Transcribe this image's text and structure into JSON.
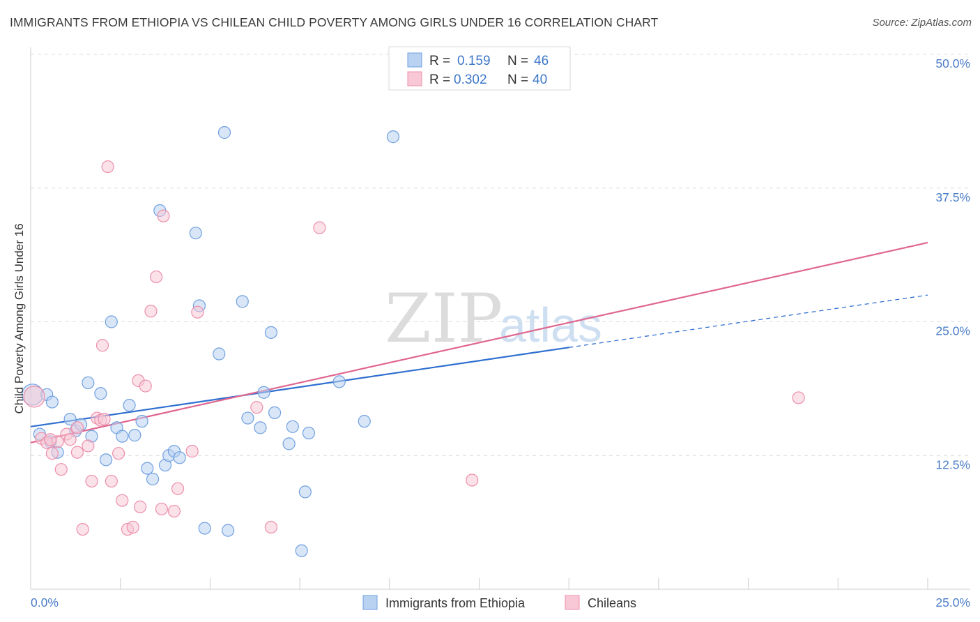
{
  "title": "IMMIGRANTS FROM ETHIOPIA VS CHILEAN CHILD POVERTY AMONG GIRLS UNDER 16 CORRELATION CHART",
  "source": "Source: ZipAtlas.com",
  "watermark": {
    "zip": "ZIP",
    "atlas": "atlas"
  },
  "legend": {
    "rows": [
      {
        "r_label": "R =",
        "r_value": "0.159",
        "n_label": "N =",
        "n_value": "46",
        "color": "#a9c6ee"
      },
      {
        "r_label": "R =",
        "r_value": "0.302",
        "n_label": "N =",
        "n_value": "40",
        "color": "#f5b7c8"
      }
    ]
  },
  "chart_data": {
    "type": "scatter",
    "title": "IMMIGRANTS FROM ETHIOPIA VS CHILEAN CHILD POVERTY AMONG GIRLS UNDER 16 CORRELATION CHART",
    "xlabel": "",
    "ylabel": "Child Poverty Among Girls Under 16",
    "xlim": [
      0,
      25
    ],
    "ylim": [
      0,
      52
    ],
    "x_tick_labels": [
      "0.0%",
      "25.0%"
    ],
    "y_ticks": [
      12.5,
      25.0,
      37.5,
      50.0
    ],
    "y_tick_labels": [
      "12.5%",
      "25.0%",
      "37.5%",
      "50.0%"
    ],
    "grid": "horizontal dashed",
    "legend_position": "top-center",
    "series": [
      {
        "name": "Immigrants from Ethiopia",
        "color": "#6fa0e0",
        "fill": "#b9d2f2",
        "trend": {
          "x0": 0,
          "y0": 15.2,
          "x1": 15,
          "y1": 22.6,
          "dash_to_x": 25,
          "dash_to_y": 27.5,
          "color": "#2f6fd0"
        },
        "points": [
          [
            0.05,
            18.2
          ],
          [
            0.25,
            14.5
          ],
          [
            0.45,
            18.2
          ],
          [
            0.6,
            17.5
          ],
          [
            0.55,
            13.8
          ],
          [
            0.75,
            12.8
          ],
          [
            1.1,
            15.9
          ],
          [
            1.25,
            14.8
          ],
          [
            1.4,
            15.4
          ],
          [
            1.6,
            19.3
          ],
          [
            1.7,
            14.3
          ],
          [
            1.95,
            18.3
          ],
          [
            2.1,
            12.1
          ],
          [
            2.25,
            25.0
          ],
          [
            2.4,
            15.1
          ],
          [
            2.55,
            14.3
          ],
          [
            2.75,
            17.2
          ],
          [
            2.9,
            14.4
          ],
          [
            3.1,
            15.7
          ],
          [
            3.25,
            11.3
          ],
          [
            3.4,
            10.3
          ],
          [
            3.6,
            35.4
          ],
          [
            3.75,
            11.6
          ],
          [
            3.85,
            12.5
          ],
          [
            4.0,
            12.9
          ],
          [
            4.15,
            12.3
          ],
          [
            4.6,
            33.3
          ],
          [
            4.7,
            26.5
          ],
          [
            4.85,
            5.7
          ],
          [
            5.25,
            22.0
          ],
          [
            5.4,
            42.7
          ],
          [
            5.5,
            5.5
          ],
          [
            5.9,
            26.9
          ],
          [
            6.05,
            16.0
          ],
          [
            6.4,
            15.1
          ],
          [
            6.5,
            18.4
          ],
          [
            6.7,
            24.0
          ],
          [
            6.8,
            16.5
          ],
          [
            7.2,
            13.6
          ],
          [
            7.3,
            15.2
          ],
          [
            7.55,
            3.6
          ],
          [
            7.65,
            9.1
          ],
          [
            7.75,
            14.6
          ],
          [
            8.6,
            19.4
          ],
          [
            9.3,
            15.7
          ],
          [
            10.1,
            42.3
          ]
        ]
      },
      {
        "name": "Chileans",
        "color": "#ec8fab",
        "fill": "#f8c8d6",
        "trend": {
          "x0": 0,
          "y0": 13.7,
          "x1": 25,
          "y1": 32.4,
          "color": "#e0668f"
        },
        "points": [
          [
            0.1,
            18.0
          ],
          [
            0.3,
            14.1
          ],
          [
            0.45,
            13.7
          ],
          [
            0.6,
            12.7
          ],
          [
            0.75,
            13.8
          ],
          [
            0.85,
            11.2
          ],
          [
            1.0,
            14.5
          ],
          [
            1.1,
            14.0
          ],
          [
            1.3,
            12.8
          ],
          [
            1.45,
            5.6
          ],
          [
            1.6,
            13.4
          ],
          [
            1.7,
            10.1
          ],
          [
            1.85,
            16.0
          ],
          [
            1.95,
            15.8
          ],
          [
            2.0,
            22.8
          ],
          [
            2.15,
            39.5
          ],
          [
            2.25,
            10.1
          ],
          [
            2.45,
            12.7
          ],
          [
            2.55,
            8.3
          ],
          [
            2.7,
            5.6
          ],
          [
            2.85,
            5.8
          ],
          [
            3.0,
            19.5
          ],
          [
            3.05,
            7.7
          ],
          [
            3.2,
            19.0
          ],
          [
            3.35,
            26.0
          ],
          [
            3.5,
            29.2
          ],
          [
            3.65,
            7.5
          ],
          [
            3.7,
            34.9
          ],
          [
            4.0,
            7.3
          ],
          [
            4.1,
            9.4
          ],
          [
            4.5,
            12.9
          ],
          [
            4.65,
            25.9
          ],
          [
            6.3,
            17.0
          ],
          [
            6.7,
            5.8
          ],
          [
            8.05,
            33.8
          ],
          [
            12.3,
            10.2
          ],
          [
            21.4,
            17.9
          ],
          [
            1.3,
            15.1
          ],
          [
            0.55,
            14.0
          ],
          [
            2.05,
            15.9
          ]
        ]
      }
    ]
  },
  "bottom_legend": [
    {
      "label": "Immigrants from Ethiopia",
      "color": "#b9d2f2",
      "border": "#6fa0e0"
    },
    {
      "label": "Chileans",
      "color": "#f8c8d6",
      "border": "#ec8fab"
    }
  ]
}
